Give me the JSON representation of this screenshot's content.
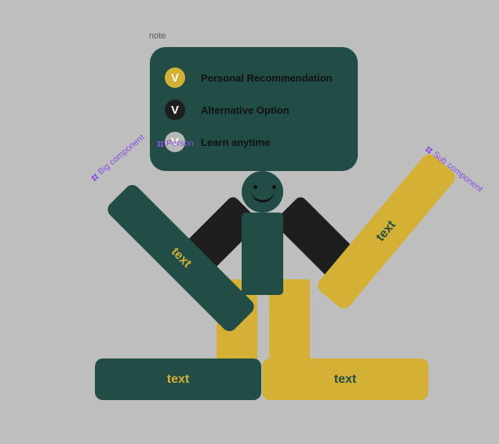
{
  "note": {
    "label": "note",
    "options": [
      {
        "badge": "V",
        "label": "Personal Recommendation",
        "badge_color": "#d4b035"
      },
      {
        "badge": "V",
        "label": "Alternative Option",
        "badge_color": "#1e1e1e"
      },
      {
        "badge": "V",
        "label": "Learn anytime",
        "badge_color": "#b8b8b8"
      }
    ]
  },
  "component_tags": {
    "person": "Person",
    "big": "Big component",
    "sub": "Sub component"
  },
  "figure": {
    "big_bar_label": "text",
    "sub_bar_label": "text",
    "left_foot_label": "text",
    "right_foot_label": "text"
  },
  "colors": {
    "background": "#bebebe",
    "dark_green": "#224d47",
    "gold": "#d4b035",
    "black": "#1e1e1e",
    "component_purple": "#8a4fe0"
  },
  "icons": {
    "component": "component-icon"
  }
}
